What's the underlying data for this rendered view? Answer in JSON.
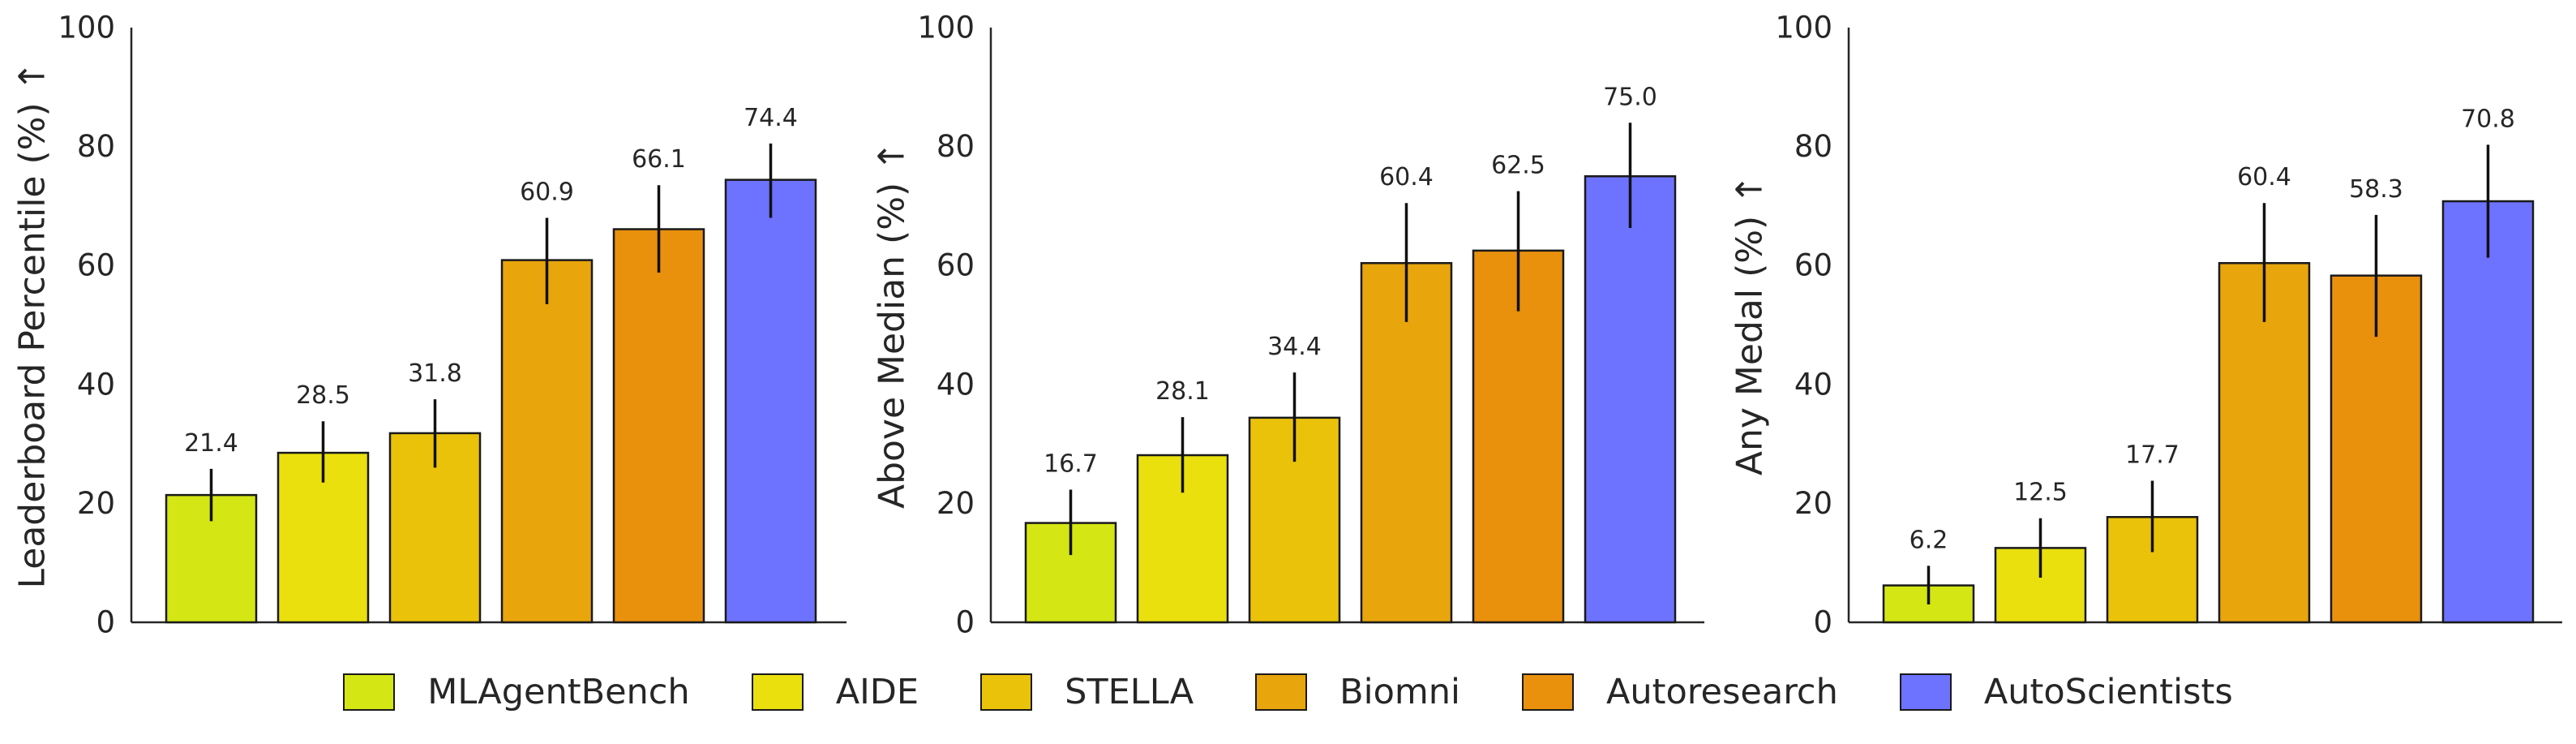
{
  "legend": [
    {
      "name": "MLAgentBench",
      "color": "#d4e614"
    },
    {
      "name": "AIDE",
      "color": "#e9e00e"
    },
    {
      "name": "STELLA",
      "color": "#ebc20a"
    },
    {
      "name": "Biomni",
      "color": "#e8a50c"
    },
    {
      "name": "Autoresearch",
      "color": "#e9900d"
    },
    {
      "name": "AutoScientists",
      "color": "#6d73ff"
    }
  ],
  "chart_data": [
    {
      "type": "bar",
      "ylabel": "Leaderboard Percentile (%)",
      "arrow": "↑",
      "ylim": [
        0,
        100
      ],
      "yticks": [
        0,
        20,
        40,
        60,
        80,
        100
      ],
      "categories": [
        "MLAgentBench",
        "AIDE",
        "STELLA",
        "Biomni",
        "Autoresearch",
        "AutoScientists"
      ],
      "values": [
        21.4,
        28.5,
        31.8,
        60.9,
        66.1,
        74.4
      ],
      "value_labels": [
        "21.4",
        "28.5",
        "31.8",
        "60.9",
        "66.1",
        "74.4"
      ],
      "error_low": [
        17.0,
        23.5,
        26.0,
        53.5,
        58.8,
        68.0
      ],
      "error_high": [
        25.8,
        33.8,
        37.5,
        68.0,
        73.5,
        80.5
      ]
    },
    {
      "type": "bar",
      "ylabel": "Above Median (%)",
      "arrow": "↑",
      "ylim": [
        0,
        100
      ],
      "yticks": [
        0,
        20,
        40,
        60,
        80,
        100
      ],
      "categories": [
        "MLAgentBench",
        "AIDE",
        "STELLA",
        "Biomni",
        "Autoresearch",
        "AutoScientists"
      ],
      "values": [
        16.7,
        28.1,
        34.4,
        60.4,
        62.5,
        75.0
      ],
      "value_labels": [
        "16.7",
        "28.1",
        "34.4",
        "60.4",
        "62.5",
        "75.0"
      ],
      "error_low": [
        11.3,
        21.8,
        27.0,
        50.5,
        52.3,
        66.3
      ],
      "error_high": [
        22.3,
        34.5,
        42.0,
        70.5,
        72.5,
        84.0
      ]
    },
    {
      "type": "bar",
      "ylabel": "Any Medal (%)",
      "arrow": "↑",
      "ylim": [
        0,
        100
      ],
      "yticks": [
        0,
        20,
        40,
        60,
        80,
        100
      ],
      "categories": [
        "MLAgentBench",
        "AIDE",
        "STELLA",
        "Biomni",
        "Autoresearch",
        "AutoScientists"
      ],
      "values": [
        6.2,
        12.5,
        17.7,
        60.4,
        58.3,
        70.8
      ],
      "value_labels": [
        "6.2",
        "12.5",
        "17.7",
        "60.4",
        "58.3",
        "70.8"
      ],
      "error_low": [
        3.0,
        7.5,
        11.8,
        50.5,
        48.0,
        61.3
      ],
      "error_high": [
        9.5,
        17.5,
        23.8,
        70.5,
        68.5,
        80.3
      ]
    }
  ]
}
